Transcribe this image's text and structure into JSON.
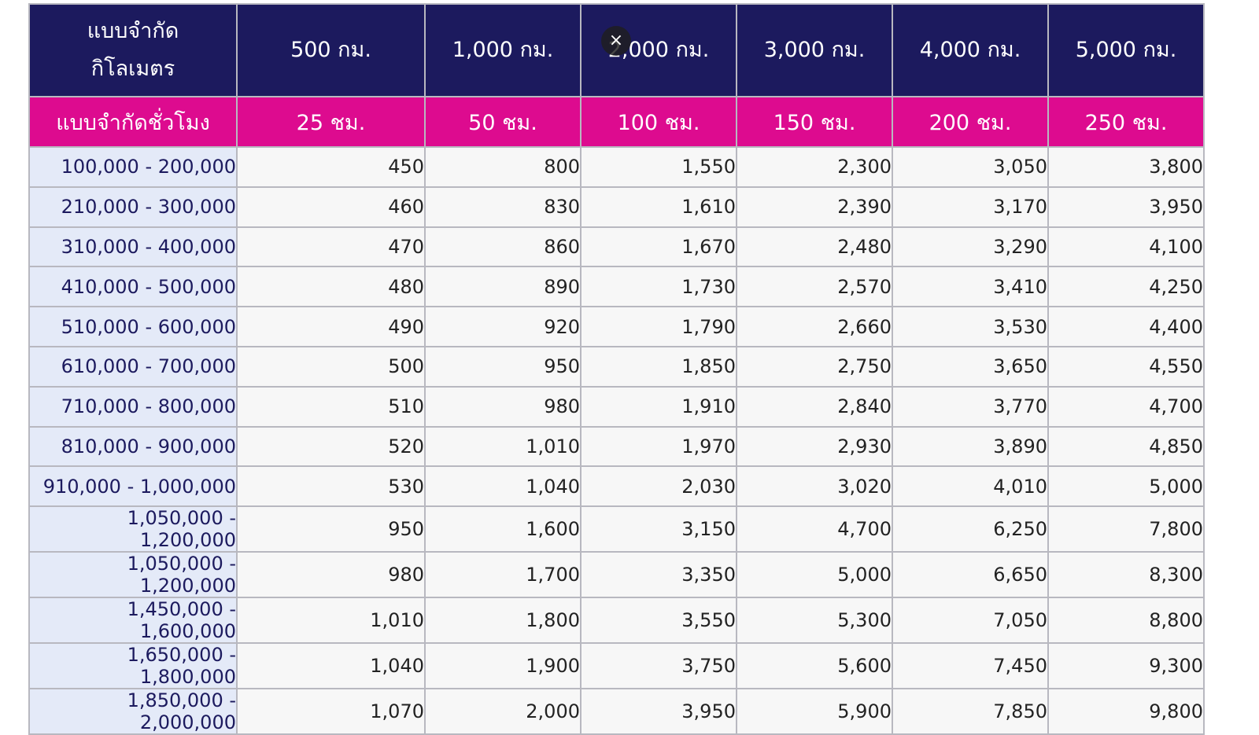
{
  "table": {
    "corner_km": [
      "แบบจำกัด",
      "กิโลเมตร"
    ],
    "corner_hours": "แบบจำกัดชั่วโมง",
    "km_headers": [
      "500 กม.",
      "1,000 กม.",
      "2,000 กม.",
      "3,000 กม.",
      "4,000 กม.",
      "5,000 กม."
    ],
    "hour_headers": [
      "25 ชม.",
      "50 ชม.",
      "100 ชม.",
      "150 ชม.",
      "200 ชม.",
      "250 ชม."
    ],
    "rows": [
      {
        "range": "100,000 - 200,000",
        "values": [
          "450",
          "800",
          "1,550",
          "2,300",
          "3,050",
          "3,800"
        ]
      },
      {
        "range": "210,000 - 300,000",
        "values": [
          "460",
          "830",
          "1,610",
          "2,390",
          "3,170",
          "3,950"
        ]
      },
      {
        "range": "310,000 - 400,000",
        "values": [
          "470",
          "860",
          "1,670",
          "2,480",
          "3,290",
          "4,100"
        ]
      },
      {
        "range": "410,000 - 500,000",
        "values": [
          "480",
          "890",
          "1,730",
          "2,570",
          "3,410",
          "4,250"
        ]
      },
      {
        "range": "510,000 - 600,000",
        "values": [
          "490",
          "920",
          "1,790",
          "2,660",
          "3,530",
          "4,400"
        ]
      },
      {
        "range": "610,000 - 700,000",
        "values": [
          "500",
          "950",
          "1,850",
          "2,750",
          "3,650",
          "4,550"
        ]
      },
      {
        "range": "710,000 - 800,000",
        "values": [
          "510",
          "980",
          "1,910",
          "2,840",
          "3,770",
          "4,700"
        ]
      },
      {
        "range": "810,000 - 900,000",
        "values": [
          "520",
          "1,010",
          "1,970",
          "2,930",
          "3,890",
          "4,850"
        ]
      },
      {
        "range": "910,000 - 1,000,000",
        "values": [
          "530",
          "1,040",
          "2,030",
          "3,020",
          "4,010",
          "5,000"
        ]
      },
      {
        "range": "1,050,000 - 1,200,000",
        "values": [
          "950",
          "1,600",
          "3,150",
          "4,700",
          "6,250",
          "7,800"
        ]
      },
      {
        "range": "1,050,000 - 1,200,000",
        "values": [
          "980",
          "1,700",
          "3,350",
          "5,000",
          "6,650",
          "8,300"
        ]
      },
      {
        "range": "1,450,000 - 1,600,000",
        "values": [
          "1,010",
          "1,800",
          "3,550",
          "5,300",
          "7,050",
          "8,800"
        ]
      },
      {
        "range": "1,650,000 - 1,800,000",
        "values": [
          "1,040",
          "1,900",
          "3,750",
          "5,600",
          "7,450",
          "9,300"
        ]
      },
      {
        "range": "1,850,000 - 2,000,000",
        "values": [
          "1,070",
          "2,000",
          "3,950",
          "5,900",
          "7,850",
          "9,800"
        ]
      }
    ]
  },
  "overlay": {
    "close_glyph": "×",
    "icon": "close-icon"
  },
  "colors": {
    "km_header_bg": "#1c1a5e",
    "hour_header_bg": "#dd0b8f",
    "range_bg": "#e4eaf8",
    "cell_bg": "#f7f7f7"
  }
}
